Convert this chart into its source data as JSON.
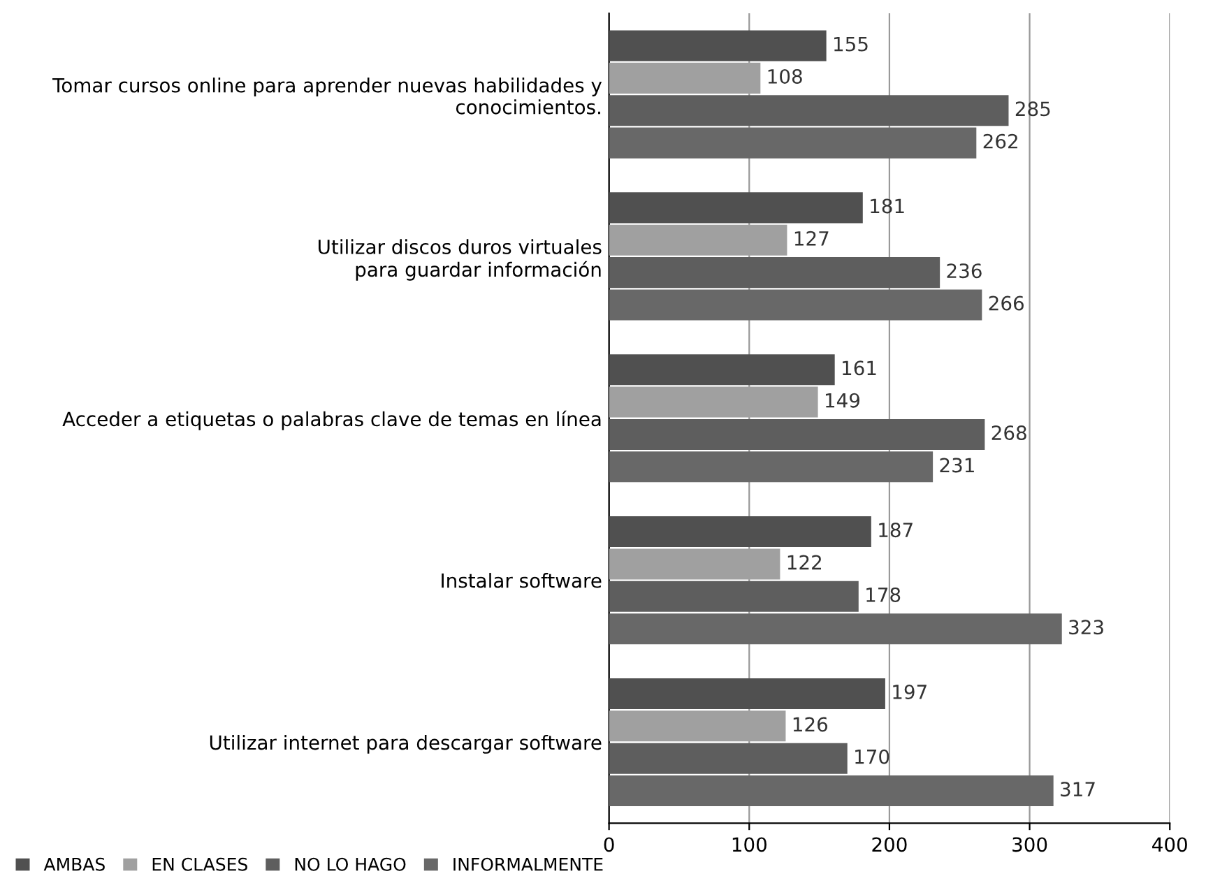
{
  "chart_data": {
    "type": "bar",
    "orientation": "horizontal",
    "categories": [
      "Tomar cursos online para aprender nuevas habilidades y\nconocimientos.",
      "Utilizar discos duros virtuales\npara guardar información",
      "Acceder a etiquetas o palabras clave de temas en línea",
      "Instalar software",
      "Utilizar internet para descargar software"
    ],
    "series": [
      {
        "name": "AMBAS",
        "color": "#505050",
        "values": [
          155,
          181,
          161,
          187,
          197
        ]
      },
      {
        "name": "EN CLASES",
        "color": "#a0a0a0",
        "values": [
          108,
          127,
          149,
          122,
          126
        ]
      },
      {
        "name": "NO LO HAGO",
        "color": "#5e5e5e",
        "values": [
          285,
          236,
          268,
          178,
          170
        ]
      },
      {
        "name": "INFORMALMENTE",
        "color": "#686868",
        "values": [
          262,
          266,
          231,
          323,
          317
        ]
      }
    ],
    "xlim": [
      0,
      400
    ],
    "xticks": [
      0,
      100,
      200,
      300,
      400
    ],
    "grid": "x",
    "data_labels": true,
    "legend": "bottom left"
  }
}
